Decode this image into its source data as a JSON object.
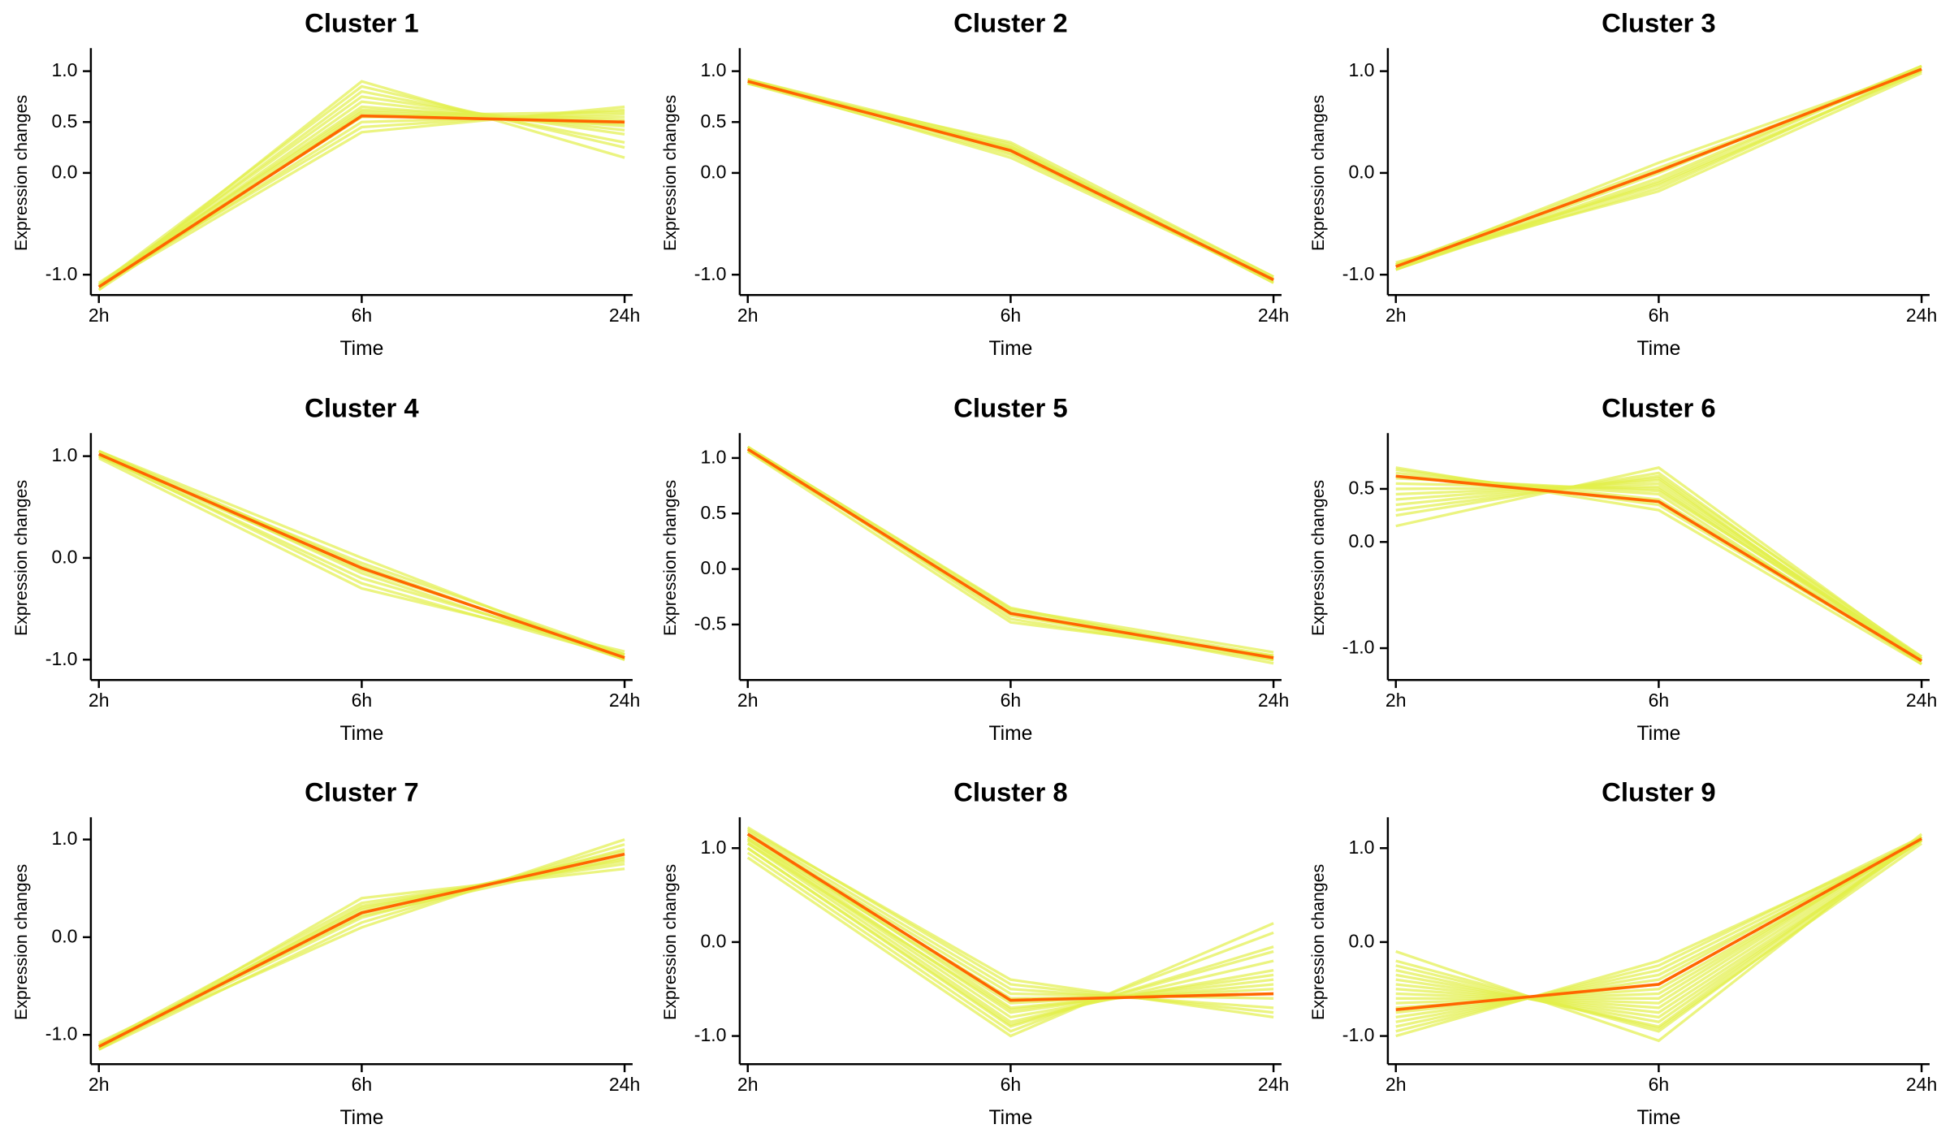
{
  "layout": {
    "rows": 3,
    "cols": 3
  },
  "global": {
    "background_color": "#ffffff",
    "axis_color": "#000000",
    "tick_length": 6,
    "title_fontsize": 20,
    "tick_fontsize": 14,
    "axis_label_fontsize": 15,
    "ylabel_fontsize": 13,
    "bg_line_color": "#e3f04a",
    "bg_line_width": 2.0,
    "bg_line_opacity": 0.7,
    "centroid_color": "#ff6600",
    "centroid_width": 2.2,
    "x_categories": [
      "2h",
      "6h",
      "24h"
    ],
    "x_positions": [
      0,
      1,
      2
    ],
    "x_label": "Time",
    "y_label": "Expression changes"
  },
  "panels": [
    {
      "title": "Cluster 1",
      "ylim": [
        -1.2,
        1.2
      ],
      "yticks": [
        -1.0,
        0.0,
        0.5,
        1.0
      ],
      "ytick_labels": [
        "-1.0",
        "0.0",
        "0.5",
        "1.0"
      ],
      "centroid": [
        -1.12,
        0.56,
        0.5
      ],
      "bg_series": [
        [
          -1.15,
          0.9,
          0.15
        ],
        [
          -1.1,
          0.85,
          0.25
        ],
        [
          -1.12,
          0.8,
          0.3
        ],
        [
          -1.1,
          0.75,
          0.38
        ],
        [
          -1.12,
          0.7,
          0.42
        ],
        [
          -1.1,
          0.65,
          0.46
        ],
        [
          -1.12,
          0.6,
          0.5
        ],
        [
          -1.1,
          0.55,
          0.55
        ],
        [
          -1.12,
          0.5,
          0.58
        ],
        [
          -1.1,
          0.45,
          0.62
        ],
        [
          -1.12,
          0.4,
          0.65
        ],
        [
          -1.15,
          0.58,
          0.48
        ],
        [
          -1.08,
          0.62,
          0.52
        ],
        [
          -1.1,
          0.56,
          0.6
        ]
      ]
    },
    {
      "title": "Cluster 2",
      "ylim": [
        -1.2,
        1.2
      ],
      "yticks": [
        -1.0,
        0.0,
        0.5,
        1.0
      ],
      "ytick_labels": [
        "-1.0",
        "0.0",
        "0.5",
        "1.0"
      ],
      "centroid": [
        0.9,
        0.22,
        -1.05
      ],
      "bg_series": [
        [
          0.92,
          0.28,
          -1.08
        ],
        [
          0.88,
          0.3,
          -1.02
        ],
        [
          0.9,
          0.25,
          -1.05
        ],
        [
          0.92,
          0.2,
          -1.06
        ],
        [
          0.88,
          0.18,
          -1.04
        ],
        [
          0.9,
          0.15,
          -1.05
        ],
        [
          0.92,
          0.24,
          -1.08
        ],
        [
          0.88,
          0.26,
          -1.02
        ]
      ]
    },
    {
      "title": "Cluster 3",
      "ylim": [
        -1.2,
        1.2
      ],
      "yticks": [
        -1.0,
        0.0,
        1.0
      ],
      "ytick_labels": [
        "-1.0",
        "0.0",
        "1.0"
      ],
      "centroid": [
        -0.92,
        0.02,
        1.02
      ],
      "bg_series": [
        [
          -0.95,
          -0.05,
          1.05
        ],
        [
          -0.9,
          -0.1,
          1.0
        ],
        [
          -0.92,
          -0.15,
          1.02
        ],
        [
          -0.95,
          0.0,
          1.05
        ],
        [
          -0.9,
          0.05,
          1.0
        ],
        [
          -0.92,
          0.1,
          1.02
        ],
        [
          -0.95,
          -0.08,
          1.05
        ],
        [
          -0.9,
          -0.12,
          1.0
        ],
        [
          -0.92,
          0.02,
          1.02
        ],
        [
          -0.88,
          -0.18,
          0.98
        ]
      ]
    },
    {
      "title": "Cluster 4",
      "ylim": [
        -1.2,
        1.2
      ],
      "yticks": [
        -1.0,
        0.0,
        1.0
      ],
      "ytick_labels": [
        "-1.0",
        "0.0",
        "1.0"
      ],
      "centroid": [
        1.02,
        -0.1,
        -0.98
      ],
      "bg_series": [
        [
          1.05,
          0.0,
          -1.0
        ],
        [
          1.0,
          -0.05,
          -0.95
        ],
        [
          1.02,
          -0.1,
          -0.98
        ],
        [
          1.05,
          -0.15,
          -1.0
        ],
        [
          1.0,
          -0.2,
          -0.95
        ],
        [
          1.02,
          -0.25,
          -0.98
        ],
        [
          1.05,
          -0.08,
          -1.0
        ],
        [
          1.0,
          -0.12,
          -0.95
        ],
        [
          0.98,
          -0.3,
          -0.92
        ]
      ]
    },
    {
      "title": "Cluster 5",
      "ylim": [
        -1.0,
        1.2
      ],
      "yticks": [
        -0.5,
        0.0,
        0.5,
        1.0
      ],
      "ytick_labels": [
        "-0.5",
        "0.0",
        "0.5",
        "1.0"
      ],
      "centroid": [
        1.08,
        -0.4,
        -0.8
      ],
      "bg_series": [
        [
          1.1,
          -0.35,
          -0.82
        ],
        [
          1.06,
          -0.38,
          -0.78
        ],
        [
          1.08,
          -0.42,
          -0.8
        ],
        [
          1.1,
          -0.45,
          -0.82
        ],
        [
          1.06,
          -0.48,
          -0.78
        ],
        [
          1.08,
          -0.4,
          -0.85
        ],
        [
          1.1,
          -0.36,
          -0.75
        ]
      ]
    },
    {
      "title": "Cluster 6",
      "ylim": [
        -1.3,
        1.0
      ],
      "yticks": [
        -1.0,
        0.0,
        0.5
      ],
      "ytick_labels": [
        "-1.0",
        "0.0",
        "0.5"
      ],
      "centroid": [
        0.62,
        0.38,
        -1.12
      ],
      "bg_series": [
        [
          0.15,
          0.7,
          -1.1
        ],
        [
          0.25,
          0.65,
          -1.12
        ],
        [
          0.35,
          0.6,
          -1.15
        ],
        [
          0.45,
          0.55,
          -1.1
        ],
        [
          0.55,
          0.5,
          -1.12
        ],
        [
          0.62,
          0.45,
          -1.15
        ],
        [
          0.65,
          0.4,
          -1.1
        ],
        [
          0.68,
          0.35,
          -1.12
        ],
        [
          0.7,
          0.3,
          -1.15
        ],
        [
          0.6,
          0.48,
          -1.08
        ],
        [
          0.5,
          0.52,
          -1.1
        ],
        [
          0.4,
          0.58,
          -1.12
        ],
        [
          0.3,
          0.62,
          -1.08
        ]
      ]
    },
    {
      "title": "Cluster 7",
      "ylim": [
        -1.3,
        1.2
      ],
      "yticks": [
        -1.0,
        0.0,
        1.0
      ],
      "ytick_labels": [
        "-1.0",
        "0.0",
        "1.0"
      ],
      "centroid": [
        -1.12,
        0.25,
        0.85
      ],
      "bg_series": [
        [
          -1.15,
          0.4,
          0.7
        ],
        [
          -1.1,
          0.35,
          0.75
        ],
        [
          -1.12,
          0.3,
          0.8
        ],
        [
          -1.15,
          0.28,
          0.85
        ],
        [
          -1.1,
          0.25,
          0.88
        ],
        [
          -1.12,
          0.2,
          0.9
        ],
        [
          -1.15,
          0.15,
          0.95
        ],
        [
          -1.1,
          0.1,
          1.0
        ],
        [
          -1.08,
          0.22,
          0.82
        ],
        [
          -1.14,
          0.32,
          0.78
        ]
      ]
    },
    {
      "title": "Cluster 8",
      "ylim": [
        -1.3,
        1.3
      ],
      "yticks": [
        -1.0,
        0.0,
        1.0
      ],
      "ytick_labels": [
        "-1.0",
        "0.0",
        "1.0"
      ],
      "centroid": [
        1.15,
        -0.62,
        -0.55
      ],
      "bg_series": [
        [
          1.2,
          -0.4,
          -0.8
        ],
        [
          0.95,
          -0.95,
          0.1
        ],
        [
          1.18,
          -0.5,
          -0.7
        ],
        [
          1.0,
          -0.9,
          -0.05
        ],
        [
          1.15,
          -0.55,
          -0.6
        ],
        [
          1.05,
          -0.85,
          -0.2
        ],
        [
          1.12,
          -0.6,
          -0.55
        ],
        [
          1.08,
          -0.8,
          -0.3
        ],
        [
          1.1,
          -0.65,
          -0.5
        ],
        [
          1.1,
          -0.75,
          -0.35
        ],
        [
          1.15,
          -0.7,
          -0.45
        ],
        [
          1.05,
          -0.72,
          -0.4
        ],
        [
          0.9,
          -1.0,
          0.2
        ],
        [
          1.22,
          -0.45,
          -0.75
        ],
        [
          1.0,
          -0.88,
          -0.1
        ]
      ]
    },
    {
      "title": "Cluster 9",
      "ylim": [
        -1.3,
        1.3
      ],
      "yticks": [
        -1.0,
        0.0,
        1.0
      ],
      "ytick_labels": [
        "-1.0",
        "0.0",
        "1.0"
      ],
      "centroid": [
        -0.72,
        -0.45,
        1.1
      ],
      "bg_series": [
        [
          -0.1,
          -1.05,
          1.15
        ],
        [
          -0.2,
          -0.95,
          1.1
        ],
        [
          -0.3,
          -0.9,
          1.12
        ],
        [
          -0.4,
          -0.8,
          1.08
        ],
        [
          -0.5,
          -0.7,
          1.1
        ],
        [
          -0.6,
          -0.6,
          1.12
        ],
        [
          -0.7,
          -0.5,
          1.08
        ],
        [
          -0.75,
          -0.45,
          1.1
        ],
        [
          -0.8,
          -0.4,
          1.12
        ],
        [
          -0.85,
          -0.35,
          1.08
        ],
        [
          -0.9,
          -0.3,
          1.1
        ],
        [
          -0.95,
          -0.25,
          1.12
        ],
        [
          -1.0,
          -0.2,
          1.08
        ],
        [
          -0.65,
          -0.55,
          1.1
        ],
        [
          -0.55,
          -0.65,
          1.12
        ],
        [
          -0.45,
          -0.75,
          1.08
        ],
        [
          -0.35,
          -0.85,
          1.1
        ],
        [
          -0.25,
          -0.92,
          1.05
        ]
      ]
    }
  ]
}
